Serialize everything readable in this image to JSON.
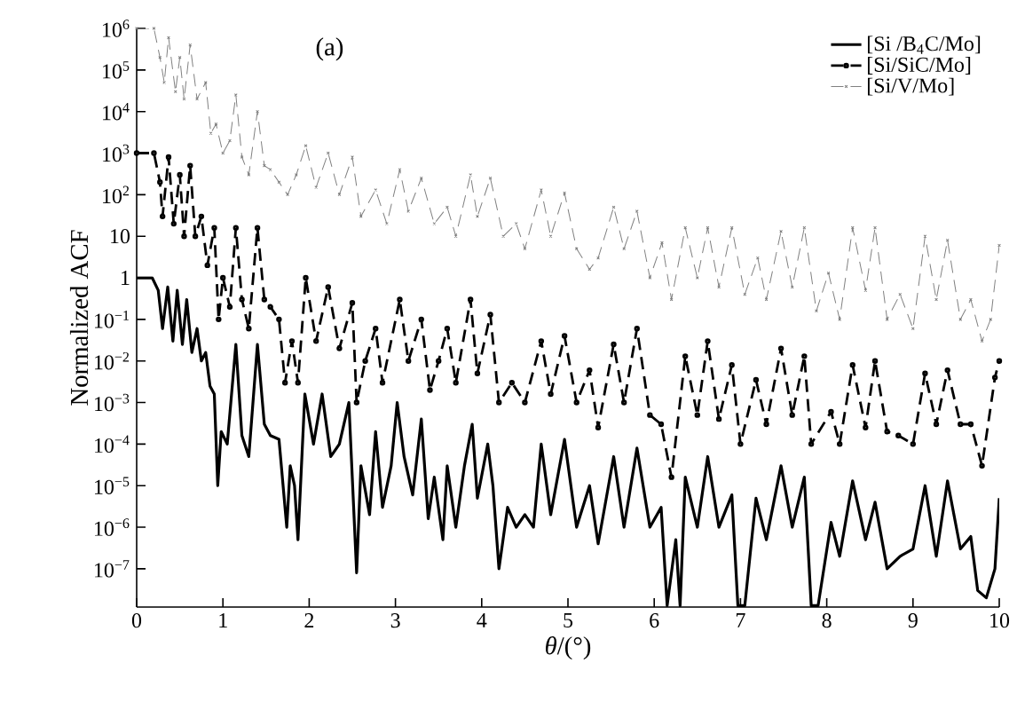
{
  "chart_data": {
    "type": "line",
    "xlabel": "*θ*/(°)",
    "ylabel": "Normalized ACF",
    "annotations": [
      "(a)"
    ],
    "log": "y",
    "legend": "top right",
    "xlim": [
      0,
      10
    ],
    "ylim": [
      1.2e-08,
      1000000
    ],
    "xticks": [
      0,
      1,
      2,
      3,
      4,
      5,
      6,
      7,
      8,
      9,
      10
    ],
    "yticks": [
      {
        "value": 1000000,
        "label": "10$^{6}$"
      },
      {
        "value": 100000,
        "label": "10$^{5}$"
      },
      {
        "value": 10000,
        "label": "10$^{4}$"
      },
      {
        "value": 1000,
        "label": "10$^{3}$"
      },
      {
        "value": 100,
        "label": "10$^{2}$"
      },
      10,
      1,
      {
        "value": 0.1,
        "label": "10$^{−1}$"
      },
      {
        "value": 0.01,
        "label": "10$^{−2}$"
      },
      {
        "value": 0.001,
        "label": "10$^{−3}$"
      },
      {
        "value": 0.0001,
        "label": "10$^{−4}$"
      },
      {
        "value": 1e-05,
        "label": "10$^{−5}$"
      },
      {
        "value": 1e-06,
        "label": "10$^{−6}$"
      },
      {
        "value": 1e-07,
        "label": "10$^{−7}$"
      }
    ],
    "series": [
      {
        "name": "[Si /B$_{4}$C/Mo]",
        "color": "#000000",
        "marker": "none",
        "line_style": "solid",
        "x": [
          0,
          0.18,
          0.25,
          0.3,
          0.36,
          0.42,
          0.47,
          0.53,
          0.58,
          0.64,
          0.7,
          0.75,
          0.8,
          0.85,
          0.9,
          0.94,
          0.98,
          1.05,
          1.15,
          1.22,
          1.3,
          1.4,
          1.48,
          1.55,
          1.65,
          1.74,
          1.78,
          1.83,
          1.87,
          1.95,
          2.05,
          2.15,
          2.25,
          2.35,
          2.46,
          2.55,
          2.6,
          2.7,
          2.77,
          2.85,
          2.95,
          3.02,
          3.1,
          3.2,
          3.3,
          3.38,
          3.45,
          3.55,
          3.6,
          3.7,
          3.8,
          3.89,
          3.95,
          4.07,
          4.13,
          4.2,
          4.3,
          4.4,
          4.5,
          4.6,
          4.69,
          4.8,
          4.96,
          5.1,
          5.25,
          5.35,
          5.53,
          5.65,
          5.8,
          5.95,
          6.08,
          6.15,
          6.25,
          6.3,
          6.36,
          6.5,
          6.62,
          6.75,
          6.9,
          6.97,
          7.05,
          7.18,
          7.3,
          7.47,
          7.6,
          7.74,
          7.82,
          7.9,
          8.05,
          8.15,
          8.3,
          8.45,
          8.56,
          8.7,
          8.85,
          9.0,
          9.14,
          9.27,
          9.4,
          9.55,
          9.67,
          9.75,
          9.85,
          9.95,
          10
        ],
        "values": [
          1,
          1,
          0.5,
          0.06,
          0.6,
          0.03,
          0.5,
          0.025,
          0.3,
          0.016,
          0.06,
          0.01,
          0.016,
          0.0025,
          0.0016,
          1e-05,
          0.0002,
          0.0001,
          0.025,
          0.00016,
          5e-05,
          0.025,
          0.0003,
          0.00016,
          0.00013,
          1e-06,
          3e-05,
          1e-05,
          5e-07,
          0.0016,
          0.0001,
          0.0016,
          5e-05,
          0.0001,
          0.001,
          8e-08,
          3e-05,
          2e-06,
          0.0002,
          3e-06,
          3e-05,
          0.001,
          5e-05,
          6e-06,
          0.0004,
          1.6e-06,
          1.6e-05,
          5e-07,
          3e-05,
          1e-06,
          3e-05,
          0.0003,
          5e-06,
          0.0001,
          1e-05,
          1e-07,
          3e-06,
          1e-06,
          2e-06,
          1e-06,
          0.0001,
          2e-06,
          0.00013,
          1e-06,
          1e-05,
          4e-07,
          5e-05,
          1e-06,
          8e-05,
          1e-06,
          3e-06,
          1.3e-08,
          5e-07,
          1.3e-08,
          1.6e-05,
          1e-06,
          5e-05,
          1e-06,
          6e-06,
          1.3e-08,
          1.3e-08,
          5e-06,
          5e-07,
          3e-05,
          1e-06,
          1.6e-05,
          1.3e-08,
          1.3e-08,
          1.3e-06,
          2e-07,
          1.3e-05,
          5e-07,
          4e-06,
          1e-07,
          2e-07,
          3e-07,
          1e-05,
          2e-07,
          1.3e-05,
          3e-07,
          6e-07,
          3e-08,
          2e-08,
          1e-07,
          5e-06
        ]
      },
      {
        "name": "[Si/SiC/Mo]",
        "color": "#000000",
        "marker": "circle",
        "line_style": "dashed",
        "x": [
          0,
          0.2,
          0.27,
          0.3,
          0.37,
          0.43,
          0.5,
          0.55,
          0.62,
          0.68,
          0.75,
          0.82,
          0.9,
          0.95,
          1.0,
          1.08,
          1.15,
          1.22,
          1.3,
          1.4,
          1.48,
          1.55,
          1.65,
          1.72,
          1.8,
          1.87,
          1.96,
          2.08,
          2.22,
          2.35,
          2.5,
          2.55,
          2.65,
          2.77,
          2.85,
          3.05,
          3.15,
          3.3,
          3.4,
          3.5,
          3.6,
          3.7,
          3.87,
          3.95,
          4.1,
          4.2,
          4.35,
          4.5,
          4.69,
          4.8,
          4.96,
          5.1,
          5.25,
          5.35,
          5.53,
          5.65,
          5.8,
          5.95,
          6.08,
          6.2,
          6.36,
          6.5,
          6.62,
          6.75,
          6.9,
          7.0,
          7.18,
          7.3,
          7.47,
          7.6,
          7.74,
          7.82,
          8.05,
          8.15,
          8.3,
          8.45,
          8.56,
          8.7,
          8.83,
          9.0,
          9.14,
          9.27,
          9.4,
          9.55,
          9.67,
          9.8,
          9.95,
          10
        ],
        "values": [
          1000,
          1000,
          200,
          30,
          800,
          20,
          300,
          10,
          500,
          10,
          30,
          2,
          16,
          0.1,
          1,
          0.2,
          16,
          0.3,
          0.06,
          16,
          0.3,
          0.2,
          0.1,
          0.003,
          0.03,
          0.003,
          1,
          0.03,
          0.6,
          0.02,
          0.25,
          0.001,
          0.01,
          0.06,
          0.003,
          0.3,
          0.01,
          0.1,
          0.002,
          0.01,
          0.06,
          0.003,
          0.3,
          0.005,
          0.13,
          0.001,
          0.003,
          0.001,
          0.03,
          0.0016,
          0.04,
          0.001,
          0.006,
          0.00025,
          0.025,
          0.001,
          0.06,
          0.0005,
          0.0003,
          1.6e-05,
          0.013,
          0.0005,
          0.03,
          0.0004,
          0.008,
          0.0001,
          0.0035,
          0.0003,
          0.02,
          0.0005,
          0.013,
          0.0001,
          0.0006,
          0.0001,
          0.008,
          0.00025,
          0.01,
          0.0002,
          0.00016,
          0.0001,
          0.005,
          0.0003,
          0.006,
          0.0003,
          0.0003,
          3e-05,
          0.004,
          0.01
        ]
      },
      {
        "name": "[Si/V/Mo]",
        "color": "#808080",
        "marker": "cross",
        "line_style": "dashed",
        "x": [
          0,
          0.2,
          0.27,
          0.32,
          0.37,
          0.45,
          0.5,
          0.55,
          0.62,
          0.7,
          0.8,
          0.86,
          0.92,
          1.0,
          1.08,
          1.15,
          1.22,
          1.3,
          1.4,
          1.48,
          1.55,
          1.65,
          1.75,
          1.85,
          1.96,
          2.08,
          2.22,
          2.35,
          2.5,
          2.6,
          2.77,
          2.9,
          3.05,
          3.15,
          3.3,
          3.45,
          3.6,
          3.7,
          3.87,
          3.95,
          4.1,
          4.25,
          4.4,
          4.5,
          4.69,
          4.8,
          4.96,
          5.1,
          5.25,
          5.35,
          5.53,
          5.65,
          5.8,
          5.95,
          6.09,
          6.2,
          6.36,
          6.5,
          6.62,
          6.75,
          6.9,
          7.05,
          7.2,
          7.3,
          7.47,
          7.6,
          7.74,
          7.88,
          8.02,
          8.15,
          8.3,
          8.45,
          8.56,
          8.7,
          8.85,
          9.0,
          9.14,
          9.27,
          9.4,
          9.55,
          9.67,
          9.8,
          9.9,
          10
        ],
        "values": [
          1000000,
          1000000,
          200000,
          50000,
          600000,
          30000,
          200000,
          20000,
          400000,
          20000,
          50000,
          3000,
          5000,
          1000,
          2000,
          25000,
          800,
          300,
          10000,
          500,
          400,
          200,
          100,
          300,
          1500,
          150,
          1000,
          100,
          800,
          30,
          130,
          20,
          400,
          40,
          250,
          20,
          50,
          10,
          300,
          30,
          250,
          10,
          20,
          5,
          130,
          10,
          110,
          5,
          1.6,
          3,
          50,
          5,
          40,
          1,
          7,
          0.3,
          16,
          1,
          16,
          0.6,
          16,
          0.4,
          3,
          0.3,
          13,
          0.6,
          16,
          0.16,
          1.3,
          0.1,
          16,
          0.5,
          16,
          0.1,
          0.4,
          0.06,
          10,
          0.3,
          8,
          0.1,
          0.3,
          0.03,
          0.1,
          6
        ]
      }
    ]
  }
}
